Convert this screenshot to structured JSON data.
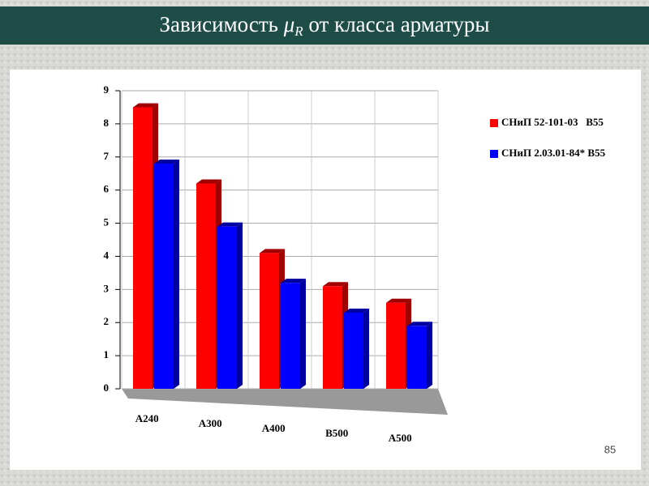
{
  "chart_data": {
    "type": "bar",
    "title": [
      "Зависимость ",
      "μ",
      "R",
      " от класса арматуры"
    ],
    "categories": [
      "A240",
      "A300",
      "A400",
      "B500",
      "A500"
    ],
    "series": [
      {
        "name": "СНиП 52-101-03   B55",
        "color": "#ff0000",
        "values": [
          8.5,
          6.2,
          4.1,
          3.1,
          2.6
        ]
      },
      {
        "name": "СНиП 2.03.01-84* B55",
        "color": "#0000ff",
        "values": [
          6.8,
          4.9,
          3.2,
          2.3,
          1.9
        ]
      }
    ],
    "ylim": [
      0,
      9
    ],
    "yticks": [
      0,
      1,
      2,
      3,
      4,
      5,
      6,
      7,
      8,
      9
    ],
    "grid": true,
    "legend": "right"
  },
  "page_number": "85"
}
